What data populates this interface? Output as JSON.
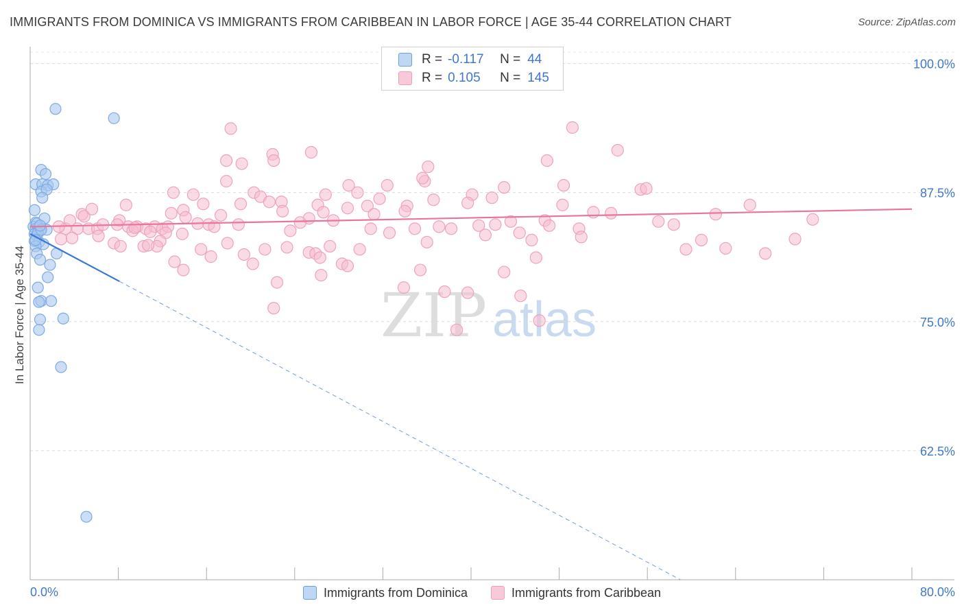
{
  "title": "IMMIGRANTS FROM DOMINICA VS IMMIGRANTS FROM CARIBBEAN IN LABOR FORCE | AGE 35-44 CORRELATION CHART",
  "source": "Source: ZipAtlas.com",
  "watermark": {
    "zip": "ZIP",
    "atlas": "atlas"
  },
  "colors": {
    "blue": "#3a78d4",
    "blue_fill": "#a8c8f0",
    "pink": "#e8769c",
    "pink_fill": "#f6bcd0",
    "axis_label": "#3f78c9"
  },
  "legend_box": {
    "rows": [
      {
        "r_label": "R =",
        "r_value": "-0.117",
        "n_label": "N =",
        "n_value": "44"
      },
      {
        "r_label": "R =",
        "r_value": "0.105",
        "n_label": "N =",
        "n_value": "145"
      }
    ]
  },
  "legend": {
    "series1": "Immigrants from Dominica",
    "series2": "Immigrants from Caribbean"
  },
  "chart_data": {
    "type": "scatter",
    "title": "IMMIGRANTS FROM DOMINICA VS IMMIGRANTS FROM CARIBBEAN IN LABOR FORCE | AGE 35-44 CORRELATION CHART",
    "xlabel": "",
    "ylabel": "In Labor Force | Age 35-44",
    "xlim": [
      0,
      80
    ],
    "ylim": [
      50,
      101.5
    ],
    "x_tick_labels": [
      "0.0%",
      "80.0%"
    ],
    "y_ticks": [
      62.5,
      75.0,
      87.5,
      100.0
    ],
    "y_tick_labels": [
      "62.5%",
      "75.0%",
      "87.5%",
      "100.0%"
    ],
    "grid": "horizontal dashed",
    "legend_position": "bottom",
    "series": [
      {
        "name": "Immigrants from Dominica",
        "color": "#3a78d4",
        "r": -0.117,
        "n": 44,
        "trend": {
          "x_start": 0,
          "y_start": 83.5,
          "x_solid_end": 8.1,
          "x_end": 59,
          "y_end": 50
        },
        "points": [
          [
            2.3,
            95.6
          ],
          [
            7.6,
            94.7
          ],
          [
            1.0,
            89.7
          ],
          [
            1.4,
            89.3
          ],
          [
            0.5,
            88.3
          ],
          [
            1.1,
            88.3
          ],
          [
            1.6,
            88.2
          ],
          [
            2.1,
            88.3
          ],
          [
            1.0,
            87.6
          ],
          [
            1.5,
            87.8
          ],
          [
            1.1,
            87.0
          ],
          [
            0.4,
            85.8
          ],
          [
            1.3,
            85.0
          ],
          [
            0.5,
            84.6
          ],
          [
            0.3,
            84.2
          ],
          [
            0.5,
            84.0
          ],
          [
            0.7,
            84.1
          ],
          [
            0.9,
            83.8
          ],
          [
            0.4,
            83.5
          ],
          [
            1.5,
            83.9
          ],
          [
            0.6,
            83.3
          ],
          [
            0.4,
            82.8
          ],
          [
            0.8,
            82.7
          ],
          [
            1.2,
            82.5
          ],
          [
            0.5,
            82.3
          ],
          [
            0.6,
            81.6
          ],
          [
            2.4,
            81.6
          ],
          [
            0.9,
            81.0
          ],
          [
            1.8,
            80.5
          ],
          [
            1.6,
            79.3
          ],
          [
            0.7,
            78.3
          ],
          [
            1.0,
            77.0
          ],
          [
            1.9,
            77.0
          ],
          [
            0.8,
            76.9
          ],
          [
            0.9,
            75.2
          ],
          [
            3.0,
            75.3
          ],
          [
            0.8,
            74.2
          ],
          [
            2.8,
            70.6
          ],
          [
            5.1,
            56.1
          ],
          [
            0.6,
            84.5
          ],
          [
            0.7,
            83.6
          ],
          [
            1.0,
            83.9
          ],
          [
            0.5,
            82.9
          ],
          [
            0.9,
            84.3
          ]
        ]
      },
      {
        "name": "Immigrants from Caribbean",
        "color": "#e8769c",
        "r": 0.105,
        "n": 145,
        "trend": {
          "x_start": 0,
          "y_start": 84.2,
          "x_end": 80,
          "y_end": 85.9
        },
        "points": [
          [
            18.2,
            93.7
          ],
          [
            49.2,
            93.8
          ],
          [
            17.8,
            90.6
          ],
          [
            22.0,
            91.2
          ],
          [
            22.1,
            90.6
          ],
          [
            25.5,
            91.4
          ],
          [
            36.1,
            90.0
          ],
          [
            46.9,
            90.6
          ],
          [
            53.3,
            91.6
          ],
          [
            19.2,
            90.3
          ],
          [
            17.8,
            88.6
          ],
          [
            35.8,
            88.6
          ],
          [
            35.6,
            88.9
          ],
          [
            28.9,
            88.2
          ],
          [
            32.4,
            88.2
          ],
          [
            43.0,
            88.0
          ],
          [
            48.4,
            88.2
          ],
          [
            55.4,
            87.8
          ],
          [
            55.9,
            87.9
          ],
          [
            13.0,
            87.5
          ],
          [
            14.8,
            87.3
          ],
          [
            20.3,
            87.5
          ],
          [
            20.9,
            87.1
          ],
          [
            26.8,
            87.3
          ],
          [
            29.7,
            87.5
          ],
          [
            40.1,
            87.3
          ],
          [
            41.9,
            87.0
          ],
          [
            36.6,
            86.8
          ],
          [
            8.7,
            86.3
          ],
          [
            15.7,
            86.4
          ],
          [
            19.1,
            86.4
          ],
          [
            21.7,
            86.6
          ],
          [
            22.8,
            86.6
          ],
          [
            26.1,
            86.3
          ],
          [
            28.8,
            86.0
          ],
          [
            30.6,
            86.2
          ],
          [
            34.2,
            86.2
          ],
          [
            39.7,
            86.5
          ],
          [
            48.3,
            86.3
          ],
          [
            51.1,
            85.6
          ],
          [
            52.7,
            85.5
          ],
          [
            62.2,
            85.4
          ],
          [
            65.3,
            86.3
          ],
          [
            4.7,
            85.4
          ],
          [
            4.9,
            85.2
          ],
          [
            8.1,
            84.8
          ],
          [
            13.9,
            85.8
          ],
          [
            14.1,
            85.1
          ],
          [
            17.3,
            85.3
          ],
          [
            22.9,
            85.7
          ],
          [
            26.6,
            85.6
          ],
          [
            25.3,
            85.0
          ],
          [
            27.5,
            84.8
          ],
          [
            31.2,
            85.4
          ],
          [
            34.0,
            85.7
          ],
          [
            43.6,
            84.7
          ],
          [
            46.7,
            84.8
          ],
          [
            58.4,
            84.4
          ],
          [
            15.2,
            84.5
          ],
          [
            3.2,
            84.0
          ],
          [
            4.3,
            84.0
          ],
          [
            5.3,
            84.0
          ],
          [
            6.1,
            84.0
          ],
          [
            6.6,
            84.4
          ],
          [
            7.9,
            84.4
          ],
          [
            8.9,
            84.2
          ],
          [
            9.7,
            84.2
          ],
          [
            10.5,
            84.0
          ],
          [
            11.3,
            84.2
          ],
          [
            12.0,
            84.0
          ],
          [
            12.5,
            84.2
          ],
          [
            16.2,
            84.4
          ],
          [
            16.7,
            84.2
          ],
          [
            23.6,
            83.8
          ],
          [
            30.9,
            84.0
          ],
          [
            37.1,
            84.2
          ],
          [
            40.7,
            84.3
          ],
          [
            49.8,
            84.0
          ],
          [
            9.3,
            83.8
          ],
          [
            10.9,
            83.7
          ],
          [
            12.3,
            83.6
          ],
          [
            13.8,
            83.5
          ],
          [
            41.3,
            83.4
          ],
          [
            2.8,
            83.0
          ],
          [
            3.8,
            83.1
          ],
          [
            7.6,
            82.6
          ],
          [
            8.2,
            82.3
          ],
          [
            10.3,
            82.3
          ],
          [
            11.8,
            82.8
          ],
          [
            11.5,
            82.3
          ],
          [
            17.9,
            82.6
          ],
          [
            15.5,
            82.0
          ],
          [
            23.3,
            82.2
          ],
          [
            27.2,
            82.3
          ],
          [
            36.0,
            82.7
          ],
          [
            38.2,
            84.0
          ],
          [
            59.5,
            82.0
          ],
          [
            66.7,
            81.6
          ],
          [
            69.4,
            83.0
          ],
          [
            16.4,
            81.3
          ],
          [
            19.4,
            81.5
          ],
          [
            20.2,
            80.6
          ],
          [
            25.3,
            81.7
          ],
          [
            25.9,
            81.6
          ],
          [
            26.3,
            81.2
          ],
          [
            28.3,
            80.6
          ],
          [
            28.8,
            80.4
          ],
          [
            13.1,
            80.8
          ],
          [
            13.9,
            80.0
          ],
          [
            26.4,
            79.5
          ],
          [
            43.0,
            79.8
          ],
          [
            35.4,
            80.0
          ],
          [
            22.4,
            78.8
          ],
          [
            22.1,
            76.3
          ],
          [
            33.9,
            78.3
          ],
          [
            37.6,
            77.9
          ],
          [
            39.7,
            77.8
          ],
          [
            44.5,
            77.5
          ],
          [
            46.2,
            75.1
          ],
          [
            38.7,
            74.2
          ],
          [
            9.5,
            84.1
          ],
          [
            18.9,
            84.4
          ],
          [
            34.9,
            84.0
          ],
          [
            47.1,
            84.3
          ],
          [
            57.0,
            84.7
          ],
          [
            21.3,
            82.0
          ],
          [
            42.2,
            84.4
          ],
          [
            24.5,
            84.6
          ],
          [
            3.6,
            84.8
          ],
          [
            6.2,
            83.3
          ],
          [
            2.6,
            84.2
          ],
          [
            29.9,
            82.0
          ],
          [
            32.6,
            83.6
          ],
          [
            45.5,
            82.9
          ],
          [
            50.0,
            83.2
          ],
          [
            60.9,
            82.9
          ],
          [
            71.0,
            84.9
          ],
          [
            5.6,
            85.9
          ],
          [
            12.8,
            85.5
          ],
          [
            45.9,
            81.2
          ],
          [
            63.1,
            82.1
          ],
          [
            44.4,
            83.6
          ],
          [
            31.7,
            86.9
          ],
          [
            10.7,
            82.4
          ]
        ]
      }
    ]
  }
}
